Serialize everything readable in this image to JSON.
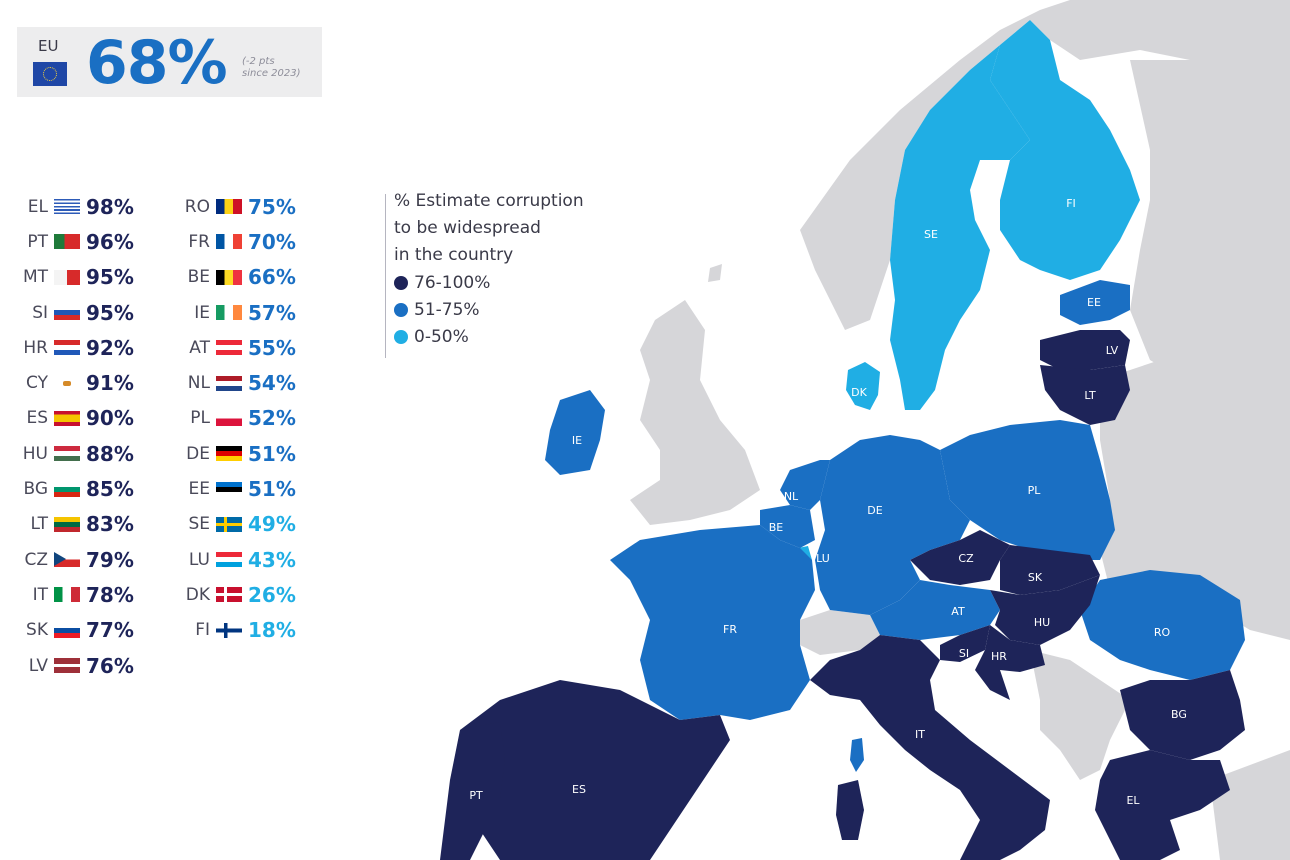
{
  "eu": {
    "code": "EU",
    "value": "68%",
    "change_line1": "(-2 pts",
    "change_line2": "since 2023)"
  },
  "legend": {
    "title_line1": "% Estimate corruption",
    "title_line2": "to be widespread",
    "title_line3": "in the country",
    "items": [
      {
        "label": "76-100%",
        "color": "#1e2459"
      },
      {
        "label": "51-75%",
        "color": "#1a6fc3"
      },
      {
        "label": "0-50%",
        "color": "#20aee4"
      }
    ]
  },
  "colors": {
    "dark": "#1e2459",
    "mid": "#1a6fc3",
    "light": "#20aee4",
    "nonEU": "#d6d6d9",
    "sea": "#ffffff"
  },
  "countries_col1": [
    {
      "code": "EL",
      "value": "98%",
      "band": "dark",
      "flag": "greece"
    },
    {
      "code": "PT",
      "value": "96%",
      "band": "dark",
      "flag": "portugal"
    },
    {
      "code": "MT",
      "value": "95%",
      "band": "dark",
      "flag": "malta"
    },
    {
      "code": "SI",
      "value": "95%",
      "band": "dark",
      "flag": "slovenia"
    },
    {
      "code": "HR",
      "value": "92%",
      "band": "dark",
      "flag": "croatia"
    },
    {
      "code": "CY",
      "value": "91%",
      "band": "dark",
      "flag": "cyprus"
    },
    {
      "code": "ES",
      "value": "90%",
      "band": "dark",
      "flag": "spain"
    },
    {
      "code": "HU",
      "value": "88%",
      "band": "dark",
      "flag": "hungary"
    },
    {
      "code": "BG",
      "value": "85%",
      "band": "dark",
      "flag": "bulgaria"
    },
    {
      "code": "LT",
      "value": "83%",
      "band": "dark",
      "flag": "lithuania"
    },
    {
      "code": "CZ",
      "value": "79%",
      "band": "dark",
      "flag": "czechia"
    },
    {
      "code": "IT",
      "value": "78%",
      "band": "dark",
      "flag": "italy"
    },
    {
      "code": "SK",
      "value": "77%",
      "band": "dark",
      "flag": "slovakia"
    },
    {
      "code": "LV",
      "value": "76%",
      "band": "dark",
      "flag": "latvia"
    }
  ],
  "countries_col2": [
    {
      "code": "RO",
      "value": "75%",
      "band": "mid",
      "flag": "romania"
    },
    {
      "code": "FR",
      "value": "70%",
      "band": "mid",
      "flag": "france"
    },
    {
      "code": "BE",
      "value": "66%",
      "band": "mid",
      "flag": "belgium"
    },
    {
      "code": "IE",
      "value": "57%",
      "band": "mid",
      "flag": "ireland"
    },
    {
      "code": "AT",
      "value": "55%",
      "band": "mid",
      "flag": "austria"
    },
    {
      "code": "NL",
      "value": "54%",
      "band": "mid",
      "flag": "netherlands"
    },
    {
      "code": "PL",
      "value": "52%",
      "band": "mid",
      "flag": "poland"
    },
    {
      "code": "DE",
      "value": "51%",
      "band": "mid",
      "flag": "germany"
    },
    {
      "code": "EE",
      "value": "51%",
      "band": "mid",
      "flag": "estonia"
    },
    {
      "code": "SE",
      "value": "49%",
      "band": "light",
      "flag": "sweden"
    },
    {
      "code": "LU",
      "value": "43%",
      "band": "light",
      "flag": "luxembourg"
    },
    {
      "code": "DK",
      "value": "26%",
      "band": "light",
      "flag": "denmark"
    },
    {
      "code": "FI",
      "value": "18%",
      "band": "light",
      "flag": "finland"
    }
  ],
  "map_labels": {
    "FI": "FI",
    "SE": "SE",
    "EE": "EE",
    "LV": "LV",
    "LT": "LT",
    "DK": "DK",
    "IE": "IE",
    "PL": "PL",
    "DE": "DE",
    "NL": "NL",
    "BE": "BE",
    "LU": "LU",
    "CZ": "CZ",
    "SK": "SK",
    "AT": "AT",
    "HU": "HU",
    "SI": "SI",
    "HR": "HR",
    "RO": "RO",
    "FR": "FR",
    "IT": "IT",
    "BG": "BG",
    "ES": "ES",
    "PT": "PT",
    "EL": "EL"
  }
}
